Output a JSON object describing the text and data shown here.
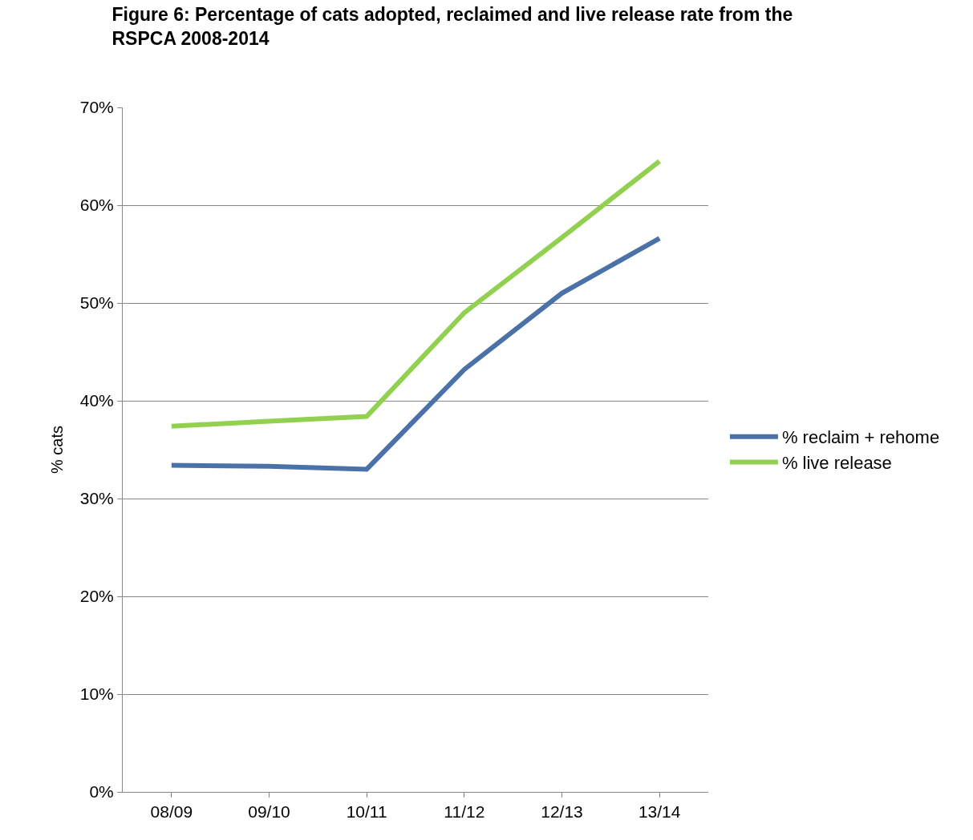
{
  "chart_data": {
    "type": "line",
    "title": "Figure 6: Percentage of cats adopted, reclaimed and live release rate from the\nRSPCA 2008-2014",
    "ylabel": "% cats",
    "categories": [
      "08/09",
      "09/10",
      "10/11",
      "11/12",
      "12/13",
      "13/14"
    ],
    "series": [
      {
        "name": "% reclaim + rehome",
        "color": "#4a72a8",
        "values": [
          33.4,
          33.3,
          33.0,
          43.2,
          51.0,
          56.6
        ]
      },
      {
        "name": "% live release",
        "color": "#92d050",
        "values": [
          37.4,
          37.9,
          38.4,
          49.0,
          56.7,
          64.5
        ]
      }
    ],
    "ylim": [
      0,
      70
    ],
    "yticks": [
      {
        "value": 0,
        "label": "0%"
      },
      {
        "value": 10,
        "label": "10%"
      },
      {
        "value": 20,
        "label": "20%"
      },
      {
        "value": 30,
        "label": "30%"
      },
      {
        "value": 40,
        "label": "40%"
      },
      {
        "value": 50,
        "label": "50%"
      },
      {
        "value": 60,
        "label": "60%"
      },
      {
        "value": 70,
        "label": "70%"
      }
    ],
    "grid": "y",
    "legend": "right",
    "marker": "none",
    "line_style": "solid"
  }
}
